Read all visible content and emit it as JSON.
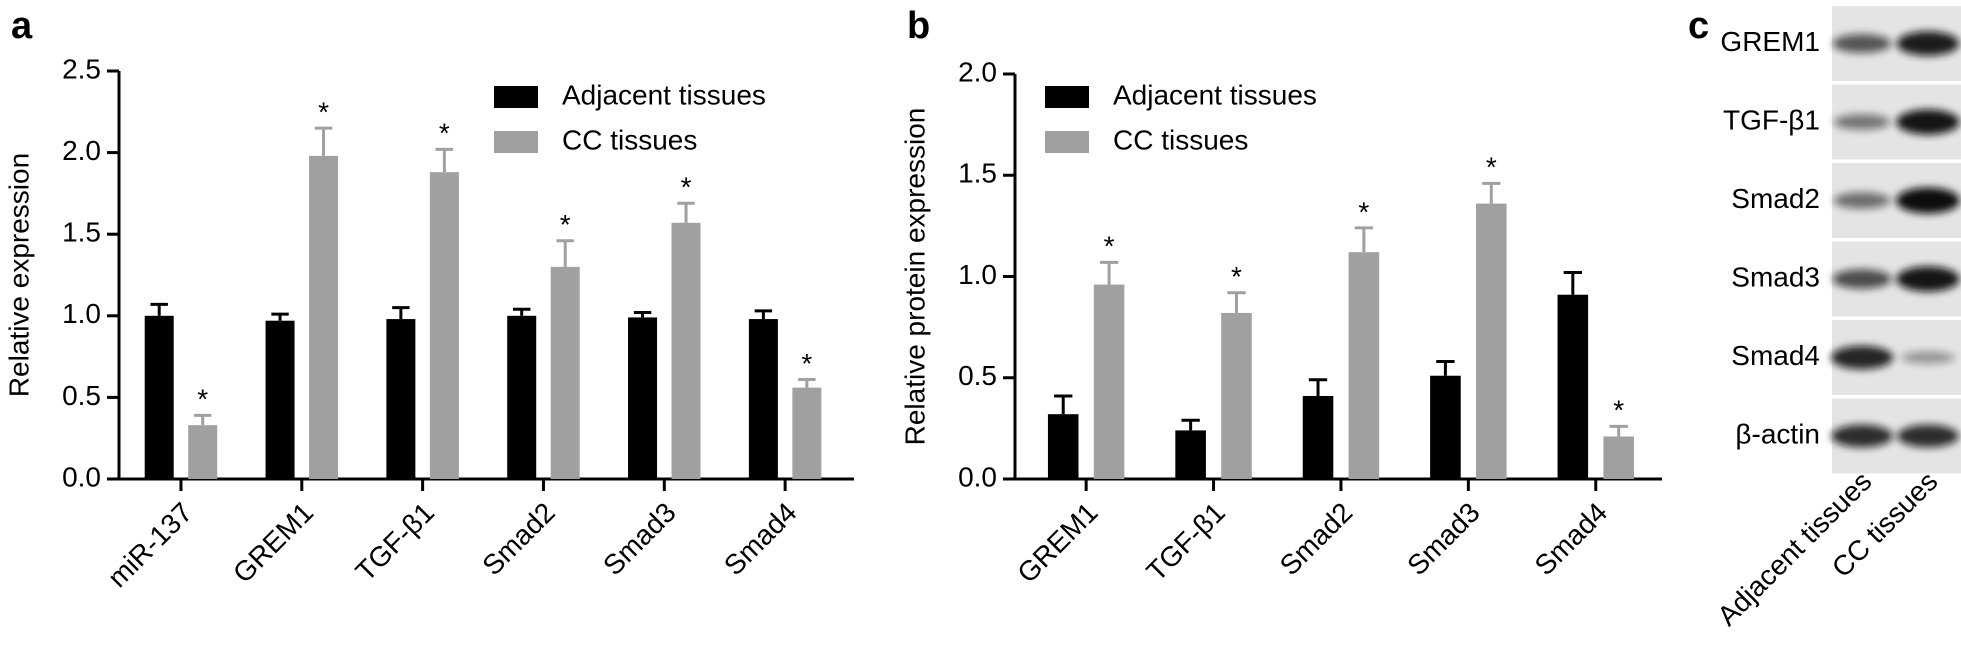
{
  "chart_data": [
    {
      "type": "bar",
      "panel_label": "a",
      "ylabel": "Relative expression",
      "categories": [
        "miR-137",
        "GREM1",
        "TGF-β1",
        "Smad2",
        "Smad3",
        "Smad4"
      ],
      "series": [
        {
          "name": "Adjacent tissues",
          "color": "#000000",
          "values": [
            1.0,
            0.97,
            0.98,
            1.0,
            0.99,
            0.98
          ],
          "errors": [
            0.07,
            0.04,
            0.07,
            0.04,
            0.03,
            0.05
          ]
        },
        {
          "name": "CC tissues",
          "color": "#a0a0a0",
          "values": [
            0.33,
            1.98,
            1.88,
            1.3,
            1.57,
            0.56
          ],
          "errors": [
            0.06,
            0.17,
            0.14,
            0.16,
            0.12,
            0.05
          ],
          "significance": [
            "*",
            "*",
            "*",
            "*",
            "*",
            "*"
          ]
        }
      ],
      "ylim": [
        0,
        2.5
      ],
      "yticks": [
        {
          "value": 0,
          "label": "0.0"
        },
        0.5,
        {
          "value": 1,
          "label": "1.0"
        },
        1.5,
        {
          "value": 2,
          "label": "2.0"
        },
        2.5
      ]
    },
    {
      "type": "bar",
      "panel_label": "b",
      "ylabel": "Relative protein expression",
      "categories": [
        "GREM1",
        "TGF-β1",
        "Smad2",
        "Smad3",
        "Smad4"
      ],
      "series": [
        {
          "name": "Adjacent tissues",
          "color": "#000000",
          "values": [
            0.32,
            0.24,
            0.41,
            0.51,
            0.91
          ],
          "errors": [
            0.09,
            0.05,
            0.08,
            0.07,
            0.11
          ]
        },
        {
          "name": "CC tissues",
          "color": "#a0a0a0",
          "values": [
            0.96,
            0.82,
            1.12,
            1.36,
            0.21
          ],
          "errors": [
            0.11,
            0.1,
            0.12,
            0.1,
            0.05
          ],
          "significance": [
            "*",
            "*",
            "*",
            "*",
            "*"
          ]
        }
      ],
      "ylim": [
        0,
        2.0
      ],
      "yticks": [
        {
          "value": 0,
          "label": "0.0"
        },
        0.5,
        {
          "value": 1,
          "label": "1.0"
        },
        1.5,
        {
          "value": 2,
          "label": "2.0"
        }
      ]
    }
  ],
  "blot": {
    "panel_label": "c",
    "rows": [
      "GREM1",
      "TGF-β1",
      "Smad2",
      "Smad3",
      "Smad4",
      "β-actin"
    ],
    "columns": [
      "Adjacent tissues",
      "CC tissues"
    ]
  }
}
